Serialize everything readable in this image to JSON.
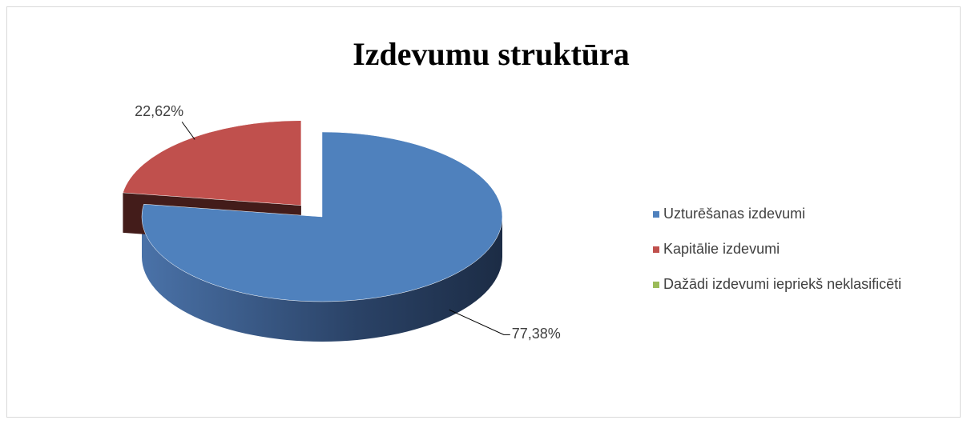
{
  "chart_data": {
    "type": "pie3d",
    "title": "Izdevumu struktūra",
    "categories": [
      "Uzturēšanas izdevumi",
      "Kapitālie izdevumi",
      "Dažādi izdevumi iepriekš neklasificēti"
    ],
    "values": [
      77.38,
      22.62,
      0
    ],
    "value_labels": [
      "77,38%",
      "22,62%",
      null
    ],
    "colors": [
      "#4f81bd",
      "#c0504d",
      "#9bbb59"
    ],
    "legend": "right"
  }
}
